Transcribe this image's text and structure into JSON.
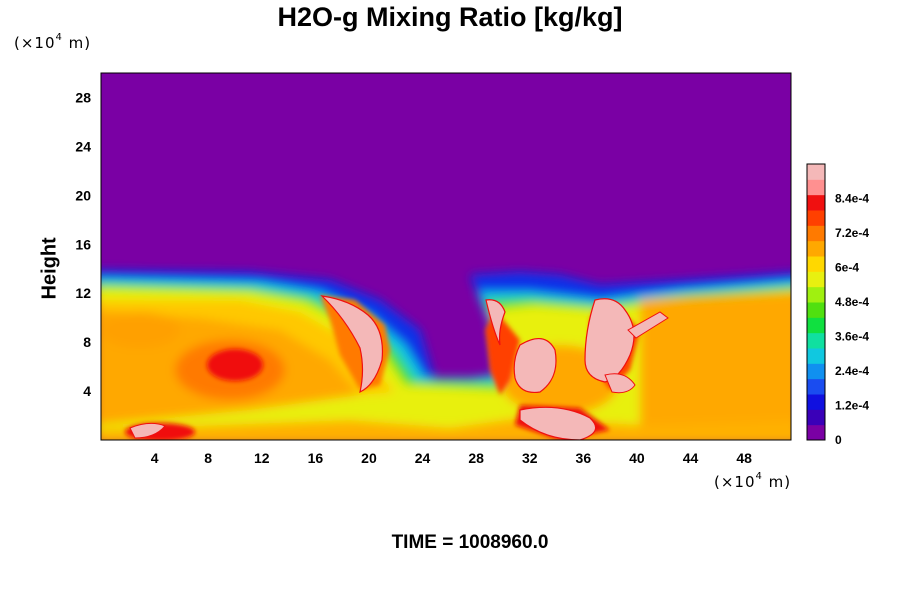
{
  "chart_data": {
    "type": "heatmap",
    "title": "H2O-g Mixing Ratio [kg/kg]",
    "ylabel": "Height",
    "xlabel": "",
    "x_unit": {
      "prefix": "(×10",
      "exp": "4",
      "suffix": " m)"
    },
    "y_unit": {
      "prefix": "(×10",
      "exp": "4",
      "suffix": " m)"
    },
    "xlim": [
      0,
      51.5
    ],
    "ylim": [
      0,
      30
    ],
    "x_ticks": [
      4,
      8,
      12,
      16,
      20,
      24,
      28,
      32,
      36,
      40,
      44,
      48
    ],
    "y_ticks": [
      4,
      8,
      12,
      16,
      20,
      24,
      28
    ],
    "colorbar": {
      "min": 0,
      "max": 0.00096,
      "tick_labels": [
        "0",
        "1.2e-4",
        "2.4e-4",
        "3.6e-4",
        "4.8e-4",
        "6e-4",
        "7.2e-4",
        "8.4e-4"
      ],
      "tick_values": [
        0,
        0.00012,
        0.00024,
        0.00036,
        0.00048,
        0.0006,
        0.00072,
        0.00084
      ],
      "colors": [
        "#7a00a4",
        "#3a00b8",
        "#1010e0",
        "#1a4cf0",
        "#1090f0",
        "#10c8e0",
        "#10e0a0",
        "#10e040",
        "#50e010",
        "#a0f010",
        "#e8f010",
        "#ffd800",
        "#ffa800",
        "#ff7a00",
        "#ff4000",
        "#f01010",
        "#ff9090",
        "#f4b8b8"
      ]
    },
    "annotation": "TIME = 1008960.0"
  }
}
